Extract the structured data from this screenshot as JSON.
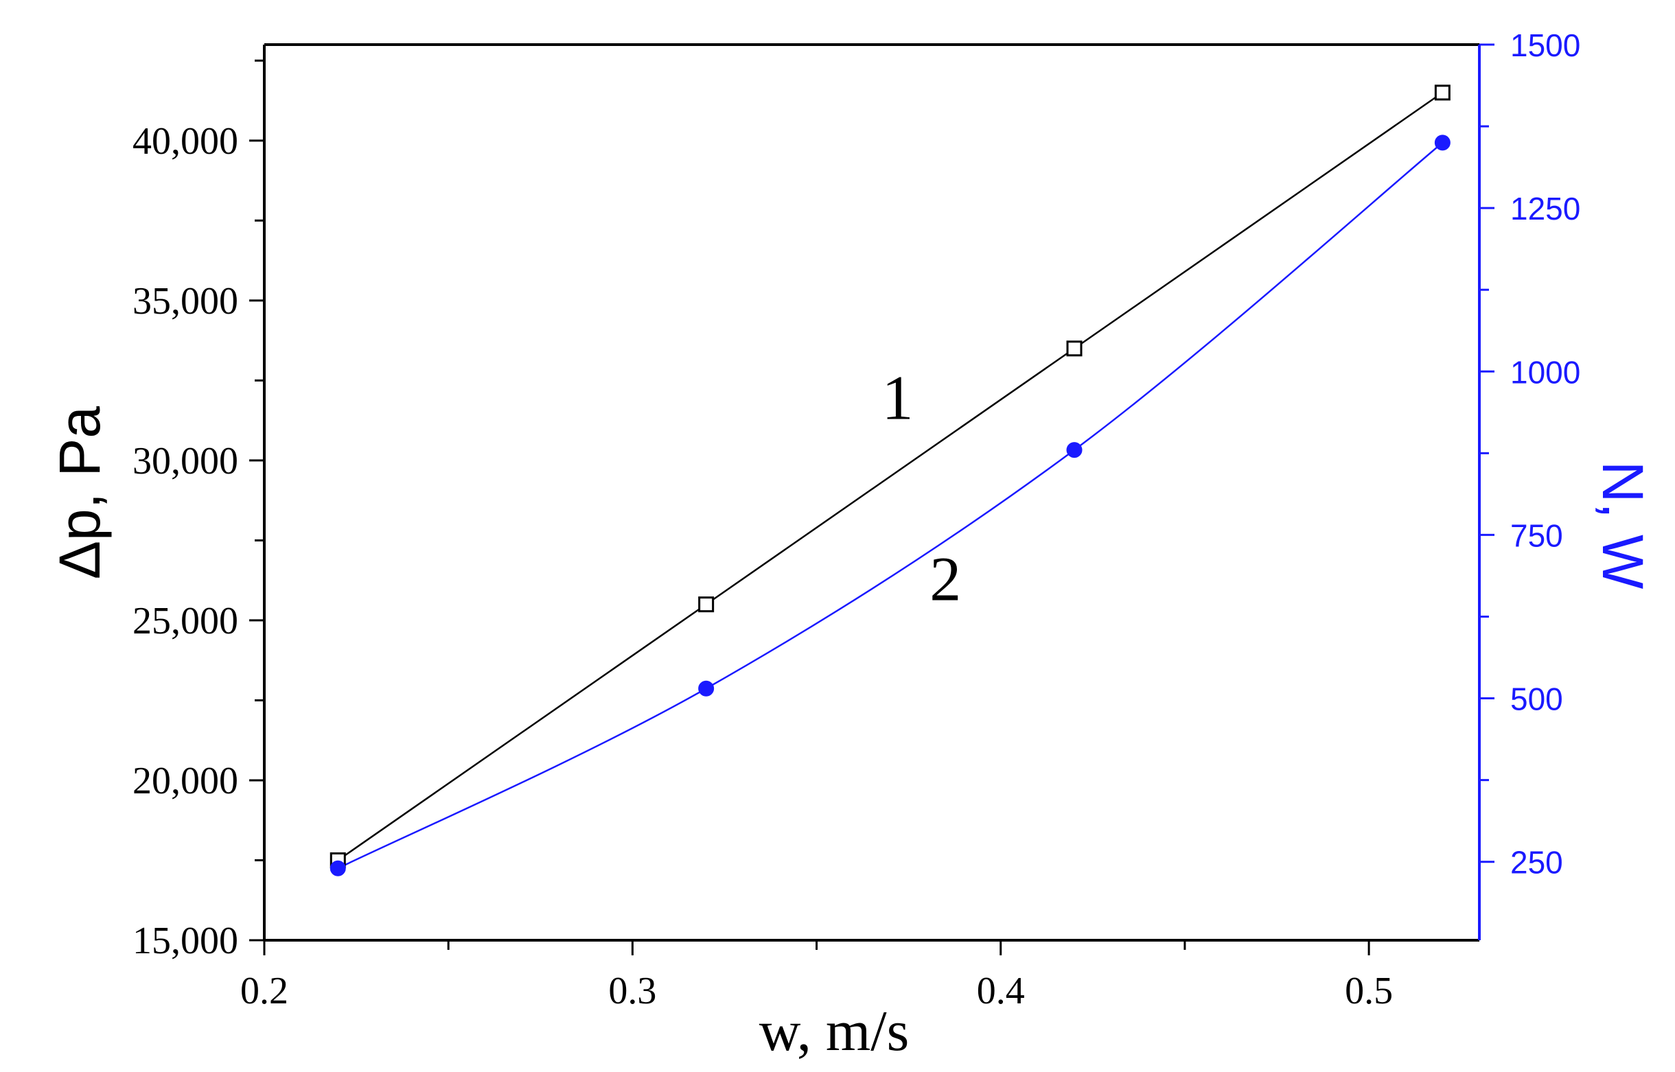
{
  "chart_data": {
    "type": "line",
    "xlabel": "w, m/s",
    "ylabel": "Δp, Pa",
    "y2label": "N, W",
    "xlim": [
      0.2,
      0.53
    ],
    "ylim": [
      15000,
      43000
    ],
    "y2lim": [
      130,
      1500
    ],
    "x_ticks": [
      0.2,
      0.3,
      0.4,
      0.5
    ],
    "x_tick_labels": [
      "0.2",
      "0.3",
      "0.4",
      "0.5"
    ],
    "y_ticks": [
      15000,
      20000,
      25000,
      30000,
      35000,
      40000
    ],
    "y_tick_labels": [
      "15,000",
      "20,000",
      "25,000",
      "30,000",
      "35,000",
      "40,000"
    ],
    "y2_ticks": [
      250,
      500,
      750,
      1000,
      1250,
      1500
    ],
    "y2_tick_labels": [
      "250",
      "500",
      "750",
      "1000",
      "1250",
      "1500"
    ],
    "grid": false,
    "series": [
      {
        "label": "1",
        "axis": "left",
        "marker": "open-square",
        "color": "#000000",
        "x": [
          0.22,
          0.32,
          0.42,
          0.52
        ],
        "y": [
          17500,
          25500,
          33500,
          41500
        ]
      },
      {
        "label": "2",
        "axis": "right",
        "marker": "filled-circle",
        "color": "#1a1aff",
        "x": [
          0.22,
          0.32,
          0.42,
          0.52
        ],
        "y": [
          240,
          515,
          880,
          1350
        ]
      }
    ]
  }
}
